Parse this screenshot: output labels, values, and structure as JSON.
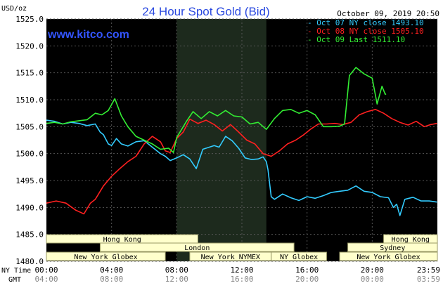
{
  "chart_data": {
    "type": "line",
    "title": "24 Hour Spot Gold (Bid)",
    "watermark": "www.kitco.com",
    "datetime": "October 09, 2019 20:50",
    "y_unit": "USD/oz",
    "ylim": [
      1480,
      1525
    ],
    "yticks": [
      "1525.0",
      "1520.0",
      "1515.0",
      "1510.0",
      "1505.0",
      "1500.0",
      "1495.0",
      "1490.0",
      "1485.0",
      "1480.0"
    ],
    "x_range_hours": [
      0,
      24
    ],
    "ny_time_label": "NY Time",
    "gmt_label": "GMT",
    "xticks_ny": [
      "00:00",
      "04:00",
      "08:00",
      "12:00",
      "16:00",
      "20:00",
      "23:59"
    ],
    "xticks_gmt": [
      "04:00",
      "08:00",
      "12:00",
      "16:00",
      "20:00",
      "00:00",
      "03:59"
    ],
    "series": [
      {
        "name": "Oct 07 NY close 1493.10",
        "color": "#33ccff",
        "x": [
          0,
          0.5,
          1,
          1.5,
          2,
          2.5,
          3,
          3.3,
          3.5,
          3.8,
          4,
          4.3,
          4.6,
          5,
          5.5,
          6,
          6.5,
          7,
          7.3,
          7.6,
          8,
          8.4,
          8.8,
          9.2,
          9.6,
          10,
          10.3,
          10.6,
          11,
          11.4,
          11.8,
          12.2,
          12.6,
          13,
          13.3,
          13.5,
          13.6,
          13.8,
          14,
          14.5,
          15,
          15.5,
          16,
          16.5,
          17,
          17.5,
          18,
          18.5,
          19,
          19.5,
          20,
          20.5,
          21,
          21.3,
          21.5,
          21.7,
          22,
          22.5,
          23,
          23.5,
          23.98
        ],
        "values": [
          1506.2,
          1506.0,
          1505.5,
          1505.8,
          1505.6,
          1505.2,
          1505.5,
          1504.0,
          1503.5,
          1501.8,
          1501.5,
          1502.8,
          1501.8,
          1501.4,
          1502.2,
          1502.4,
          1501.2,
          1500.0,
          1499.5,
          1498.7,
          1499.2,
          1499.8,
          1499.0,
          1497.2,
          1500.8,
          1501.2,
          1501.5,
          1501.2,
          1503.2,
          1502.4,
          1501.0,
          1499.2,
          1498.9,
          1499.0,
          1499.4,
          1498.5,
          1497.0,
          1492.0,
          1491.5,
          1492.5,
          1491.8,
          1491.3,
          1492.0,
          1491.7,
          1492.2,
          1492.8,
          1493.0,
          1493.2,
          1494.0,
          1493.0,
          1492.8,
          1492.0,
          1491.8,
          1490.0,
          1490.6,
          1488.5,
          1491.5,
          1491.9,
          1491.2,
          1491.2,
          1491.0
        ]
      },
      {
        "name": "Oct 08 NY close 1505.10",
        "color": "#ff2020",
        "x": [
          0,
          0.6,
          1.2,
          1.8,
          2.3,
          2.7,
          3.0,
          3.5,
          4.0,
          4.5,
          5.0,
          5.5,
          6.0,
          6.5,
          7.0,
          7.3,
          7.6,
          8.0,
          8.4,
          8.8,
          9.3,
          9.8,
          10.3,
          10.8,
          11.3,
          11.8,
          12.3,
          12.8,
          13.3,
          13.8,
          14.3,
          14.8,
          15.3,
          15.8,
          16.2,
          16.7,
          17.2,
          17.7,
          18.2,
          18.7,
          19.2,
          19.7,
          20.2,
          20.7,
          21.2,
          21.7,
          22.2,
          22.7,
          23.2,
          23.6,
          23.98
        ],
        "values": [
          1490.8,
          1491.2,
          1490.8,
          1489.5,
          1488.8,
          1490.8,
          1491.5,
          1494.0,
          1495.8,
          1497.2,
          1498.5,
          1499.5,
          1501.8,
          1503.2,
          1502.2,
          1500.5,
          1500.2,
          1502.8,
          1504.0,
          1506.4,
          1505.6,
          1506.2,
          1505.4,
          1504.2,
          1505.4,
          1504.0,
          1502.5,
          1501.8,
          1500.0,
          1499.5,
          1500.5,
          1501.8,
          1502.5,
          1503.5,
          1504.5,
          1505.5,
          1505.5,
          1505.6,
          1505.4,
          1505.8,
          1507.2,
          1507.8,
          1508.2,
          1507.5,
          1506.5,
          1505.8,
          1505.3,
          1506.0,
          1505.0,
          1505.4,
          1505.6
        ]
      },
      {
        "name": "Oct 09 Last 1511.10",
        "color": "#33ee33",
        "x": [
          0,
          0.5,
          1.0,
          1.5,
          2.0,
          2.5,
          3.0,
          3.4,
          3.8,
          4.2,
          4.6,
          5.0,
          5.5,
          6.0,
          6.5,
          7.0,
          7.5,
          7.8,
          8.0,
          8.3,
          8.6,
          9.0,
          9.5,
          10.0,
          10.5,
          11.0,
          11.5,
          12.0,
          12.5,
          13.0,
          13.5,
          14.0,
          14.5,
          15.0,
          15.5,
          16.0,
          16.5,
          17.0,
          17.5,
          18.0,
          18.3,
          18.6,
          19.0,
          19.5,
          20.0,
          20.3,
          20.6,
          20.8,
          20.85
        ],
        "values": [
          1505.6,
          1505.8,
          1505.5,
          1505.9,
          1506.1,
          1506.3,
          1507.5,
          1507.2,
          1508.0,
          1510.2,
          1507.0,
          1505.0,
          1503.2,
          1502.5,
          1501.8,
          1500.8,
          1501.0,
          1500.2,
          1503.0,
          1504.5,
          1506.0,
          1507.8,
          1506.5,
          1507.8,
          1507.0,
          1508.0,
          1507.0,
          1506.8,
          1505.5,
          1505.8,
          1504.5,
          1506.5,
          1508.0,
          1508.2,
          1507.5,
          1508.0,
          1507.2,
          1505.0,
          1505.0,
          1505.1,
          1505.5,
          1514.5,
          1516.0,
          1514.8,
          1514.0,
          1509.2,
          1512.5,
          1511.0,
          1511.1
        ]
      }
    ],
    "session_bars": [
      {
        "label": "Hong Kong",
        "start": 0,
        "end": 9.3,
        "row": 0
      },
      {
        "label": "London",
        "start": 3.3,
        "end": 15.2,
        "row": 1
      },
      {
        "label": "New York Globex",
        "start": 0,
        "end": 7.3,
        "row": 2
      },
      {
        "label": "New York NYMEX",
        "start": 8.8,
        "end": 13.8,
        "row": 2
      },
      {
        "label": "NY Globex",
        "start": 13.8,
        "end": 17.2,
        "row": 2
      },
      {
        "label": "Hong Kong",
        "start": 20.7,
        "end": 24,
        "row": 0
      },
      {
        "label": "Sydney",
        "start": 18.5,
        "end": 24,
        "row": 1
      },
      {
        "label": "New York Globex",
        "start": 18.0,
        "end": 24,
        "row": 2
      }
    ],
    "highlight_window": {
      "start": 8.0,
      "end": 13.5
    },
    "grid": true,
    "legend_position": "top-right"
  }
}
